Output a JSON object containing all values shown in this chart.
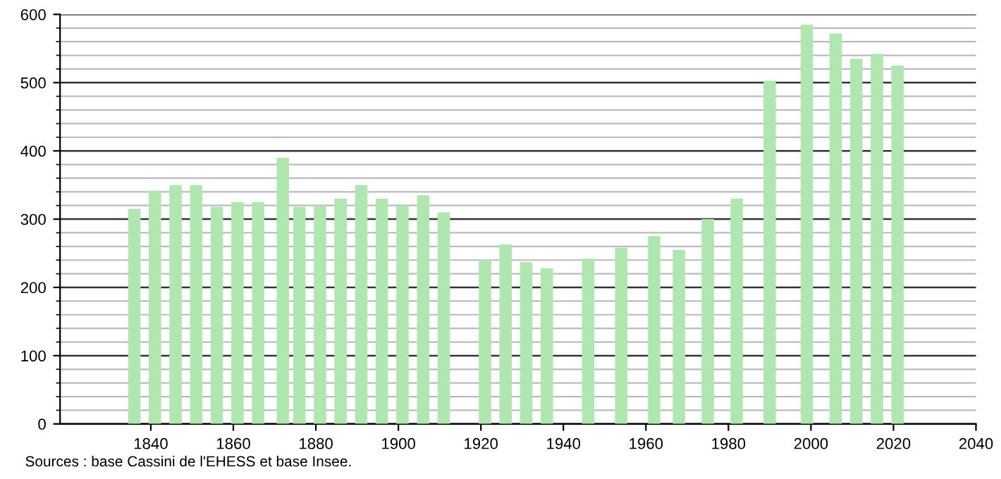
{
  "chart_data": {
    "type": "bar",
    "x": [
      1836,
      1841,
      1846,
      1851,
      1856,
      1861,
      1866,
      1872,
      1876,
      1881,
      1886,
      1891,
      1896,
      1901,
      1906,
      1911,
      1921,
      1926,
      1931,
      1936,
      1946,
      1954,
      1962,
      1968,
      1975,
      1982,
      1990,
      1999,
      2006,
      2011,
      2016,
      2021
    ],
    "values": [
      315,
      342,
      350,
      350,
      318,
      325,
      325,
      390,
      318,
      320,
      330,
      350,
      330,
      320,
      335,
      310,
      240,
      263,
      237,
      228,
      242,
      258,
      275,
      255,
      300,
      330,
      503,
      585,
      572,
      535,
      542,
      525
    ],
    "color": "#b0e6b0",
    "xlim": [
      1818,
      2040
    ],
    "xticks": [
      1840,
      1860,
      1880,
      1900,
      1920,
      1940,
      1960,
      1980,
      2000,
      2020,
      2040
    ],
    "ylim": [
      0,
      600
    ],
    "yticks": [
      0,
      100,
      200,
      300,
      400,
      500,
      600
    ],
    "grid": "y",
    "annotations": [
      "Sources : base Cassini de l'EHESS et base Insee."
    ]
  }
}
